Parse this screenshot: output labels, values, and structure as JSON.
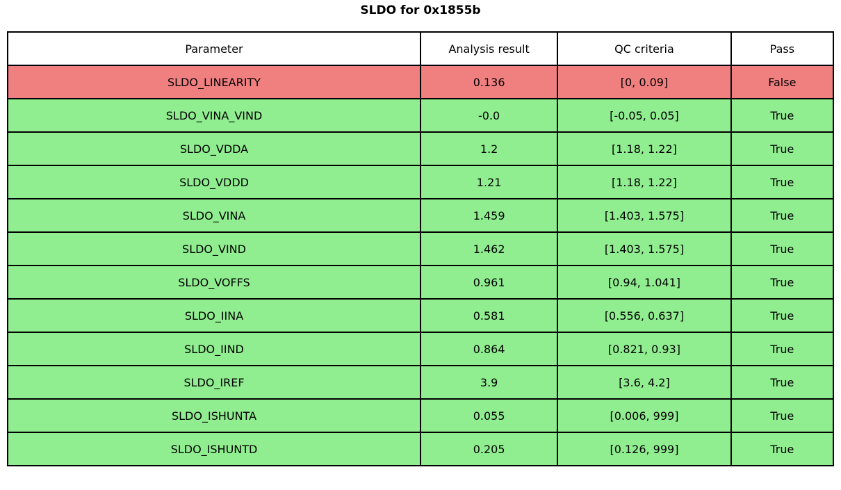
{
  "title": "SLDO for 0x1855b",
  "colors": {
    "fail_row": "#f08080",
    "pass_row": "#90ee90",
    "header_row": "#ffffff",
    "border": "#000000",
    "text": "#000000"
  },
  "chart_data": {
    "type": "table",
    "title": "SLDO for 0x1855b",
    "columns": [
      "Parameter",
      "Analysis result",
      "QC criteria",
      "Pass"
    ],
    "rows": [
      [
        "SLDO_LINEARITY",
        "0.136",
        "[0, 0.09]",
        "False"
      ],
      [
        "SLDO_VINA_VIND",
        "-0.0",
        "[-0.05, 0.05]",
        "True"
      ],
      [
        "SLDO_VDDA",
        "1.2",
        "[1.18, 1.22]",
        "True"
      ],
      [
        "SLDO_VDDD",
        "1.21",
        "[1.18, 1.22]",
        "True"
      ],
      [
        "SLDO_VINA",
        "1.459",
        "[1.403, 1.575]",
        "True"
      ],
      [
        "SLDO_VIND",
        "1.462",
        "[1.403, 1.575]",
        "True"
      ],
      [
        "SLDO_VOFFS",
        "0.961",
        "[0.94, 1.041]",
        "True"
      ],
      [
        "SLDO_IINA",
        "0.581",
        "[0.556, 0.637]",
        "True"
      ],
      [
        "SLDO_IIND",
        "0.864",
        "[0.821, 0.93]",
        "True"
      ],
      [
        "SLDO_IREF",
        "3.9",
        "[3.6, 4.2]",
        "True"
      ],
      [
        "SLDO_ISHUNTA",
        "0.055",
        "[0.006, 999]",
        "True"
      ],
      [
        "SLDO_ISHUNTD",
        "0.205",
        "[0.126, 999]",
        "True"
      ]
    ]
  }
}
